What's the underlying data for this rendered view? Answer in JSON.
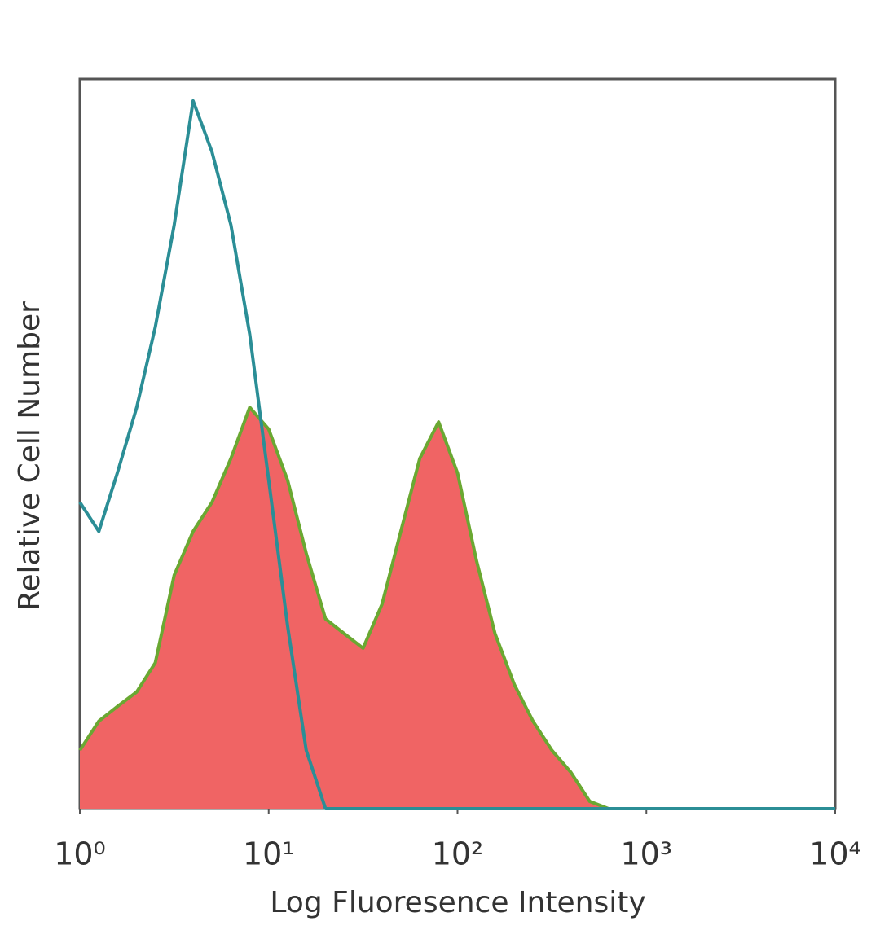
{
  "chart_data": {
    "type": "histogram-overlay",
    "x_label": "Log Fluoresence Intensity",
    "y_label": "Relative Cell Number",
    "x_scale": "log",
    "x": [
      1,
      1.26,
      1.58,
      2,
      2.51,
      3.16,
      3.98,
      5.01,
      6.31,
      7.94,
      10,
      12.6,
      15.8,
      20,
      25.1,
      31.6,
      39.8,
      50.1,
      63.1,
      79.4,
      100,
      126,
      158,
      200,
      251,
      316,
      398,
      501,
      631,
      1000,
      10000
    ],
    "series": [
      {
        "color": "#2b8e96",
        "fill": false,
        "values": [
          42,
          38,
          46,
          55,
          66,
          80,
          97,
          90,
          80,
          65,
          45,
          25,
          8,
          0,
          0,
          0,
          0,
          0,
          0,
          0,
          0,
          0,
          0,
          0,
          0,
          0,
          0,
          0,
          0,
          0,
          0
        ]
      },
      {
        "color": "#6aa832",
        "fill": true,
        "fill_color": "#f06464",
        "values": [
          8,
          12,
          14,
          16,
          20,
          32,
          38,
          42,
          48,
          55,
          52,
          45,
          35,
          26,
          24,
          22,
          28,
          38,
          48,
          53,
          46,
          34,
          24,
          17,
          12,
          8,
          5,
          1,
          0,
          0,
          0
        ]
      }
    ],
    "xlim": [
      1,
      10000
    ],
    "ylim": [
      0,
      100
    ],
    "xticks": [
      {
        "value": 1,
        "label": "10⁰"
      },
      {
        "value": 10,
        "label": "10¹"
      },
      {
        "value": 100,
        "label": "10²"
      },
      {
        "value": 1000,
        "label": "10³"
      },
      {
        "value": 10000,
        "label": "10⁴"
      }
    ]
  }
}
